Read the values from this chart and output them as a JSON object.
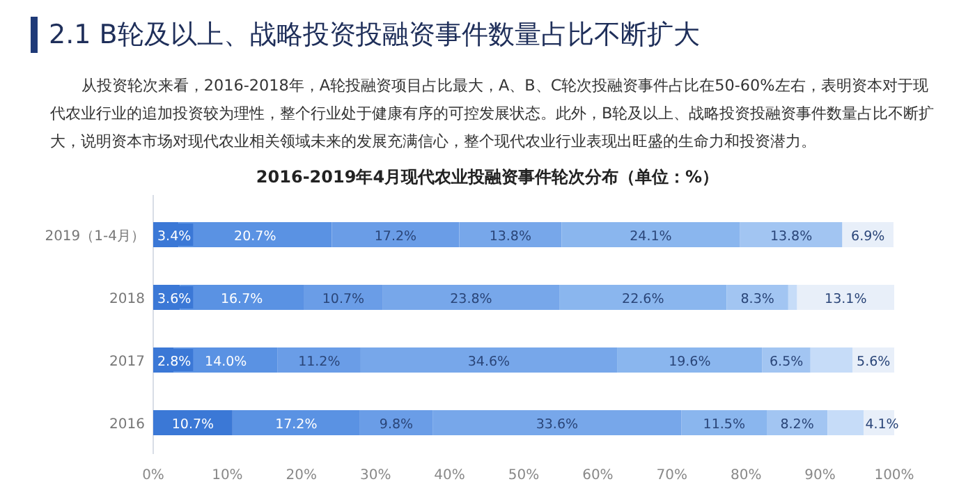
{
  "chart_data": {
    "type": "bar",
    "orientation": "horizontal",
    "stacked": true,
    "title": "2016-2019年4月现代农业投融资事件轮次分布（单位：%）",
    "annotations": [
      "2.1 B轮及以上、战略投资投融资事件数量占比不断扩大",
      "从投资轮次来看，2016-2018年，A轮投融资项目占比最大，A、B、C轮次投融资事件占比在50-60%左右，表明资本对于现代农业行业的追加投资较为理性，整个行业处于健康有序的可控发展状态。此外，B轮及以上、战略投资投融资事件数量占比不断扩大，说明资本市场对现代农业相关领域未来的发展充满信心，整个现代农业行业表现出旺盛的生命力和投资潜力。"
    ],
    "categories": [
      "2019（1-4月）",
      "2018",
      "2017",
      "2016"
    ],
    "series": [
      {
        "color": "#3b78d6",
        "values": [
          3.4,
          3.6,
          2.8,
          10.7
        ],
        "value_labels": [
          "3.4%",
          "3.6%",
          "2.8%",
          "10.7%"
        ]
      },
      {
        "color": "#5a92e3",
        "values": [
          20.7,
          16.7,
          14.0,
          17.2
        ],
        "value_labels": [
          "20.7%",
          "16.7%",
          "14.0%",
          "17.2%"
        ]
      },
      {
        "color": "#6a9de7",
        "values": [
          17.2,
          10.7,
          11.2,
          9.8
        ],
        "value_labels": [
          "17.2%",
          "10.7%",
          "11.2%",
          "9.8%"
        ]
      },
      {
        "color": "#77a7ea",
        "values": [
          13.8,
          23.8,
          34.6,
          33.6
        ],
        "value_labels": [
          "13.8%",
          "23.8%",
          "34.6%",
          "33.6%"
        ]
      },
      {
        "color": "#8ab6ee",
        "values": [
          24.1,
          22.6,
          19.6,
          11.5
        ],
        "value_labels": [
          "24.1%",
          "22.6%",
          "19.6%",
          "11.5%"
        ]
      },
      {
        "color": "#a2c5f2",
        "values": [
          13.8,
          8.3,
          6.5,
          8.2
        ],
        "value_labels": [
          "13.8%",
          "8.3%",
          "6.5%",
          "8.2%"
        ]
      },
      {
        "color": "#c6dcf8",
        "values": [
          null,
          1.2,
          5.7,
          4.9
        ],
        "value_labels": [
          null,
          null,
          null,
          null
        ]
      },
      {
        "color": "#e8eff9",
        "values": [
          6.9,
          13.1,
          5.6,
          4.1
        ],
        "value_labels": [
          "6.9%",
          "13.1%",
          "5.6%",
          "4.1%"
        ]
      }
    ],
    "xlim": [
      0,
      100
    ],
    "xticks": [
      {
        "value": 0,
        "label": "0%"
      },
      {
        "value": 10,
        "label": "10%"
      },
      {
        "value": 20,
        "label": "20%"
      },
      {
        "value": 30,
        "label": "30%"
      },
      {
        "value": 40,
        "label": "40%"
      },
      {
        "value": 50,
        "label": "50%"
      },
      {
        "value": 60,
        "label": "60%"
      },
      {
        "value": 70,
        "label": "70%"
      },
      {
        "value": 80,
        "label": "80%"
      },
      {
        "value": 90,
        "label": "90%"
      },
      {
        "value": 100,
        "label": "100%"
      }
    ],
    "grid": false
  }
}
